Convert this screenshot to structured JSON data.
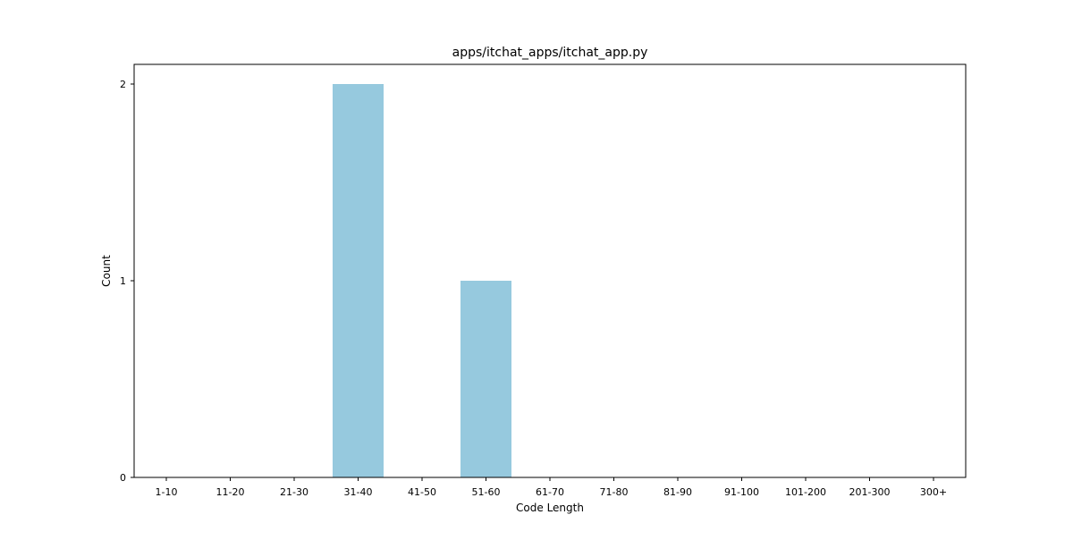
{
  "chart_data": {
    "type": "bar",
    "title": "apps/itchat_apps/itchat_app.py",
    "xlabel": "Code Length",
    "ylabel": "Count",
    "categories": [
      "1-10",
      "11-20",
      "21-30",
      "31-40",
      "41-50",
      "51-60",
      "61-70",
      "71-80",
      "81-90",
      "91-100",
      "101-200",
      "201-300",
      "300+"
    ],
    "values": [
      0,
      0,
      0,
      2,
      0,
      1,
      0,
      0,
      0,
      0,
      0,
      0,
      0
    ],
    "yticks": [
      0,
      1,
      2
    ],
    "ylim": [
      0,
      2.1
    ],
    "bar_color": "#96c9de",
    "grid": false,
    "legend": "none"
  }
}
